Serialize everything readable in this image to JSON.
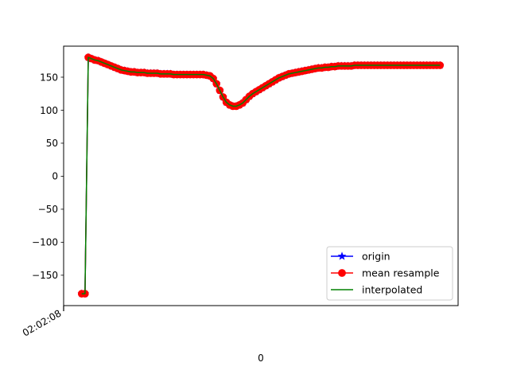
{
  "chart_data": {
    "type": "line",
    "title": "",
    "xlabel": "0",
    "ylabel": "",
    "x_tick_labels": [
      "02:02:08"
    ],
    "y_ticks": [
      150,
      100,
      50,
      0,
      -50,
      -100,
      -150
    ],
    "y_tick_labels": [
      "150",
      "100",
      "50",
      "0",
      "−50",
      "−100",
      "−150"
    ],
    "ylim": [
      -196,
      197
    ],
    "xlim": [
      -5.5,
      114.5
    ],
    "grid": false,
    "legend": {
      "position": "lower-right"
    },
    "x": [
      0,
      1,
      2,
      3,
      4,
      5,
      6,
      7,
      8,
      9,
      10,
      11,
      12,
      13,
      14,
      15,
      16,
      17,
      18,
      19,
      20,
      21,
      22,
      23,
      24,
      25,
      26,
      27,
      28,
      29,
      30,
      31,
      32,
      33,
      34,
      35,
      36,
      37,
      38,
      39,
      40,
      41,
      42,
      43,
      44,
      45,
      46,
      47,
      48,
      49,
      50,
      51,
      52,
      53,
      54,
      55,
      56,
      57,
      58,
      59,
      60,
      61,
      62,
      63,
      64,
      65,
      66,
      67,
      68,
      69,
      70,
      71,
      72,
      73,
      74,
      75,
      76,
      77,
      78,
      79,
      80,
      81,
      82,
      83,
      84,
      85,
      86,
      87,
      88,
      89,
      90,
      91,
      92,
      93,
      94,
      95,
      96,
      97,
      98,
      99,
      100,
      101,
      102,
      103,
      104,
      105,
      106,
      107,
      108,
      109
    ],
    "series": [
      {
        "name": "origin",
        "color": "#0000ff",
        "marker": "star",
        "values": [
          -178,
          -178,
          180,
          178,
          176,
          175,
          173,
          171,
          169,
          167,
          165,
          163,
          161,
          160,
          159,
          158,
          158,
          157,
          157,
          157,
          156,
          156,
          156,
          156,
          155,
          155,
          155,
          155,
          154,
          154,
          154,
          154,
          154,
          154,
          154,
          154,
          154,
          154,
          153,
          152,
          148,
          140,
          130,
          120,
          112,
          108,
          106,
          106,
          108,
          111,
          116,
          121,
          125,
          128,
          131,
          134,
          137,
          140,
          143,
          146,
          149,
          151,
          153,
          155,
          156,
          157,
          158,
          159,
          160,
          161,
          162,
          163,
          164,
          164,
          165,
          165,
          166,
          166,
          167,
          167,
          167,
          167,
          167,
          168,
          168,
          168,
          168,
          168,
          168,
          168,
          168,
          168,
          168,
          168,
          168,
          168,
          168,
          168,
          168,
          168,
          168,
          168,
          168,
          168,
          168,
          168,
          168,
          168,
          168,
          168
        ]
      },
      {
        "name": "mean resample",
        "color": "#ff0000",
        "marker": "circle",
        "values": [
          -178,
          -178,
          180,
          178,
          176,
          175,
          173,
          171,
          169,
          167,
          165,
          163,
          161,
          160,
          159,
          158,
          158,
          157,
          157,
          157,
          156,
          156,
          156,
          156,
          155,
          155,
          155,
          155,
          154,
          154,
          154,
          154,
          154,
          154,
          154,
          154,
          154,
          154,
          153,
          152,
          148,
          140,
          130,
          120,
          112,
          108,
          106,
          106,
          108,
          111,
          116,
          121,
          125,
          128,
          131,
          134,
          137,
          140,
          143,
          146,
          149,
          151,
          153,
          155,
          156,
          157,
          158,
          159,
          160,
          161,
          162,
          163,
          164,
          164,
          165,
          165,
          166,
          166,
          167,
          167,
          167,
          167,
          167,
          168,
          168,
          168,
          168,
          168,
          168,
          168,
          168,
          168,
          168,
          168,
          168,
          168,
          168,
          168,
          168,
          168,
          168,
          168,
          168,
          168,
          168,
          168,
          168,
          168,
          168,
          168
        ]
      },
      {
        "name": "interpolated",
        "color": "#008000",
        "marker": "none",
        "values": [
          -178,
          -178,
          180,
          178,
          176,
          175,
          173,
          171,
          169,
          167,
          165,
          163,
          161,
          160,
          159,
          158,
          158,
          157,
          157,
          157,
          156,
          156,
          156,
          156,
          155,
          155,
          155,
          155,
          154,
          154,
          154,
          154,
          154,
          154,
          154,
          154,
          154,
          154,
          153,
          152,
          148,
          140,
          130,
          120,
          112,
          108,
          106,
          106,
          108,
          111,
          116,
          121,
          125,
          128,
          131,
          134,
          137,
          140,
          143,
          146,
          149,
          151,
          153,
          155,
          156,
          157,
          158,
          159,
          160,
          161,
          162,
          163,
          164,
          164,
          165,
          165,
          166,
          166,
          167,
          167,
          167,
          167,
          167,
          168,
          168,
          168,
          168,
          168,
          168,
          168,
          168,
          168,
          168,
          168,
          168,
          168,
          168,
          168,
          168,
          168,
          168,
          168,
          168,
          168,
          168,
          168,
          168,
          168,
          168,
          168
        ]
      }
    ]
  }
}
